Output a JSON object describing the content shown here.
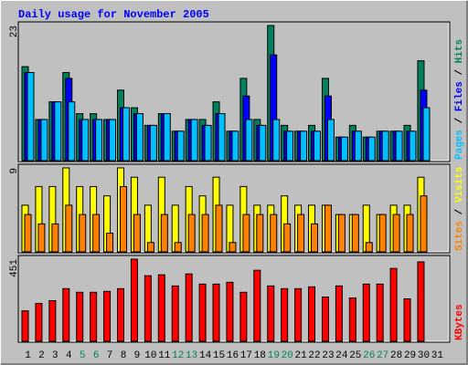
{
  "chart_data": [
    {
      "type": "bar",
      "title": "Daily usage for November 2005",
      "ylim": [
        0,
        23
      ],
      "yticks": [
        23
      ],
      "legend_separator": " / ",
      "series": [
        {
          "name": "Hits",
          "color": "#00805c",
          "values": [
            16,
            7,
            10,
            15,
            8,
            8,
            7,
            12,
            9,
            6,
            8,
            5,
            7,
            7,
            10,
            5,
            14,
            7,
            23,
            6,
            5,
            6,
            14,
            4,
            6,
            4,
            5,
            5,
            6,
            17,
            0
          ]
        },
        {
          "name": "Files",
          "color": "#0000ff",
          "values": [
            15,
            7,
            10,
            14,
            7,
            7,
            7,
            9,
            8,
            6,
            8,
            5,
            7,
            6,
            8,
            5,
            11,
            6,
            18,
            5,
            5,
            5,
            11,
            4,
            5,
            4,
            5,
            5,
            5,
            12,
            0
          ]
        },
        {
          "name": "Pages",
          "color": "#00c0ff",
          "values": [
            15,
            7,
            10,
            10,
            7,
            7,
            7,
            9,
            8,
            6,
            8,
            5,
            7,
            6,
            8,
            5,
            7,
            6,
            7,
            5,
            5,
            5,
            7,
            4,
            5,
            4,
            5,
            5,
            5,
            9,
            0
          ]
        }
      ]
    },
    {
      "type": "bar",
      "ylim": [
        0,
        9
      ],
      "yticks": [
        9
      ],
      "legend_separator": " / ",
      "series": [
        {
          "name": "Visits",
          "color": "#ffff00",
          "values": [
            5,
            7,
            7,
            9,
            7,
            7,
            6,
            9,
            8,
            5,
            8,
            5,
            7,
            6,
            8,
            5,
            7,
            5,
            5,
            6,
            5,
            5,
            5,
            4,
            4,
            5,
            4,
            5,
            5,
            8,
            0
          ]
        },
        {
          "name": "Sites",
          "color": "#ff8000",
          "values": [
            4,
            3,
            3,
            5,
            4,
            4,
            2,
            7,
            4,
            1,
            4,
            1,
            4,
            4,
            5,
            1,
            4,
            4,
            4,
            3,
            4,
            3,
            5,
            4,
            4,
            1,
            4,
            4,
            4,
            6,
            0
          ]
        }
      ]
    },
    {
      "type": "bar",
      "ylim": [
        0,
        451
      ],
      "yticks": [
        451
      ],
      "series": [
        {
          "name": "KBytes",
          "color": "#ff0000",
          "values": [
            167,
            208,
            223,
            289,
            269,
            269,
            274,
            289,
            451,
            360,
            365,
            304,
            370,
            314,
            314,
            324,
            269,
            390,
            304,
            289,
            289,
            299,
            243,
            304,
            238,
            314,
            314,
            400,
            233,
            436,
            0
          ]
        }
      ],
      "categories": [
        "1",
        "2",
        "3",
        "4",
        "5",
        "6",
        "7",
        "8",
        "9",
        "10",
        "11",
        "12",
        "13",
        "14",
        "15",
        "16",
        "17",
        "18",
        "19",
        "20",
        "21",
        "22",
        "23",
        "24",
        "25",
        "26",
        "27",
        "28",
        "29",
        "30",
        "31"
      ],
      "category_colors": [
        "#000000",
        "#000000",
        "#000000",
        "#000000",
        "#00805c",
        "#00805c",
        "#000000",
        "#000000",
        "#000000",
        "#000000",
        "#000000",
        "#00805c",
        "#00805c",
        "#000000",
        "#000000",
        "#000000",
        "#000000",
        "#000000",
        "#00805c",
        "#00805c",
        "#000000",
        "#000000",
        "#000000",
        "#000000",
        "#000000",
        "#00805c",
        "#00805c",
        "#000000",
        "#000000",
        "#000000",
        "#000000"
      ]
    }
  ]
}
